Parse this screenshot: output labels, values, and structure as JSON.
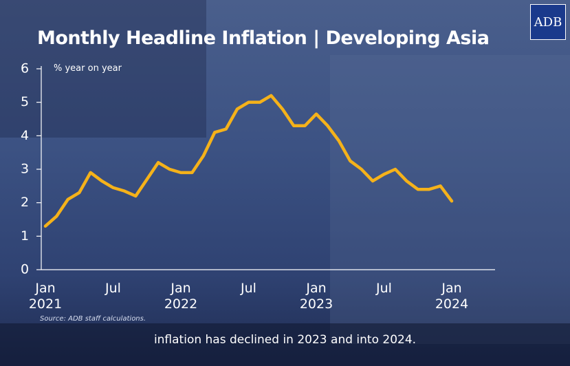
{
  "chart_data": {
    "type": "line",
    "title": "Monthly Headline Inflation | Developing Asia",
    "y_label": "% year on year",
    "source": "Source: ADB staff calculations.",
    "caption": "inflation has declined in 2023 and into 2024.",
    "categories": [
      "Jan\n2021",
      null,
      null,
      null,
      null,
      null,
      "Jul",
      null,
      null,
      null,
      null,
      null,
      "Jan\n2022",
      null,
      null,
      null,
      null,
      null,
      "Jul",
      null,
      null,
      null,
      null,
      null,
      "Jan\n2023",
      null,
      null,
      null,
      null,
      null,
      "Jul",
      null,
      null,
      null,
      null,
      null,
      "Jan\n2024"
    ],
    "values": [
      1.3,
      1.6,
      2.1,
      2.3,
      2.9,
      2.65,
      2.45,
      2.35,
      2.2,
      2.7,
      3.2,
      3.0,
      2.9,
      2.9,
      3.4,
      4.1,
      4.2,
      4.8,
      5.0,
      5.0,
      5.2,
      4.8,
      4.3,
      4.3,
      4.65,
      4.3,
      3.85,
      3.25,
      3.0,
      2.65,
      2.85,
      3.0,
      2.65,
      2.4,
      2.4,
      2.5,
      2.05
    ],
    "color": "#f5b21a",
    "ylim": [
      0,
      6
    ],
    "yticks": [
      0,
      1,
      2,
      3,
      4,
      5,
      6
    ]
  },
  "logo": "ADB"
}
